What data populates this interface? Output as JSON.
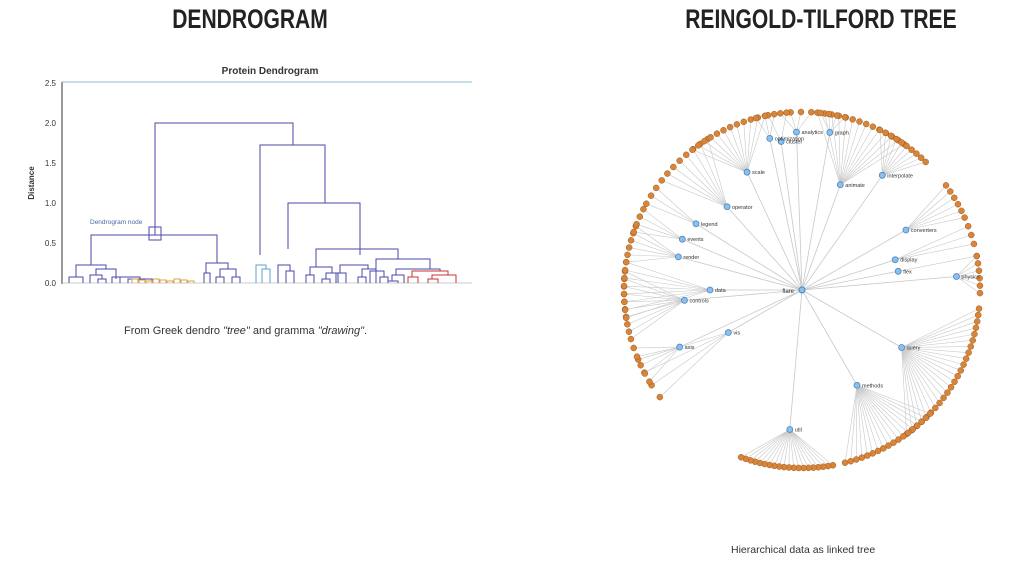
{
  "left_panel": {
    "heading": "DENDROGRAM",
    "chart_title": "Protein Dendrogram",
    "y_axis_label": "Distance",
    "y_ticks": [
      "0.0",
      "0.5",
      "1.0",
      "1.5",
      "2.0",
      "2.5"
    ],
    "annotation": "Dendrogram node",
    "caption_prefix": "From Greek dendro ",
    "caption_word1": "\"tree\"",
    "caption_middle": " and gramma ",
    "caption_word2": "\"drawing\"",
    "caption_suffix": "."
  },
  "right_panel": {
    "heading": "REINGOLD-TILFORD TREE",
    "caption": "Hierarchical data as linked tree",
    "root_label": "flare",
    "branches": [
      "query",
      "methods",
      "util",
      "vis",
      "controls",
      "axis",
      "data",
      "render",
      "events",
      "legend",
      "operator",
      "scale",
      "animate",
      "interpolate",
      "converters",
      "display",
      "flex",
      "physics",
      "analytics",
      "cluster",
      "graph",
      "optimization"
    ]
  },
  "colors": {
    "dendro_blue": "#4a4aaa",
    "dendro_light": "#5aa0d0",
    "dendro_orange": "#e0a040",
    "dendro_red": "#c83030",
    "tree_leaf": "#d7853a",
    "tree_node": "#8cc0ea",
    "link": "#c8c8c8"
  }
}
